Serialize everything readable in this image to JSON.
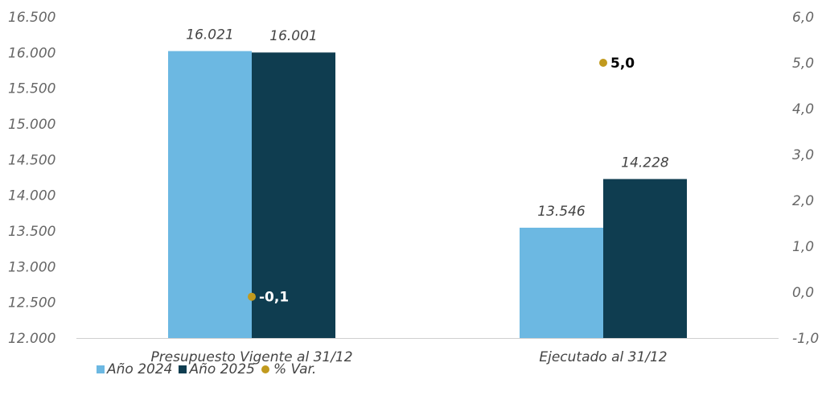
{
  "chart_data": {
    "type": "bar",
    "categories": [
      "Presupuesto Vigente al 31/12",
      "Ejecutado al 31/12"
    ],
    "series": [
      {
        "name": "Año 2024",
        "type": "bar",
        "axis": "left",
        "values": [
          16021,
          13546
        ],
        "labels": [
          "16.021",
          "13.546"
        ],
        "color": "#6CB8E2"
      },
      {
        "name": "Año 2025",
        "type": "bar",
        "axis": "left",
        "values": [
          16001,
          14228
        ],
        "labels": [
          "16.001",
          "14.228"
        ],
        "color": "#0F3D50"
      },
      {
        "name": "% Var.",
        "type": "scatter",
        "axis": "right",
        "values": [
          -0.1,
          5.0
        ],
        "labels": [
          "-0,1",
          "5,0"
        ],
        "color": "#C19A1E"
      }
    ],
    "y_left": {
      "lim": [
        12000,
        16500
      ],
      "ticks": [
        12000,
        12500,
        13000,
        13500,
        14000,
        14500,
        15000,
        15500,
        16000,
        16500
      ],
      "tick_labels": [
        "12.000",
        "12.500",
        "13.000",
        "13.500",
        "14.000",
        "14.500",
        "15.000",
        "15.500",
        "16.000",
        "16.500"
      ]
    },
    "y_right": {
      "lim": [
        -1.0,
        6.0
      ],
      "ticks": [
        -1,
        0,
        1,
        2,
        3,
        4,
        5,
        6
      ],
      "tick_labels": [
        "-1,0",
        "0,0",
        "1,0",
        "2,0",
        "3,0",
        "4,0",
        "5,0",
        "6,0"
      ]
    },
    "title": "",
    "xlabel": "",
    "ylabel": "",
    "grid": false,
    "legend_position": "bottom-left",
    "axis_line_color": "#D0D0D0"
  }
}
